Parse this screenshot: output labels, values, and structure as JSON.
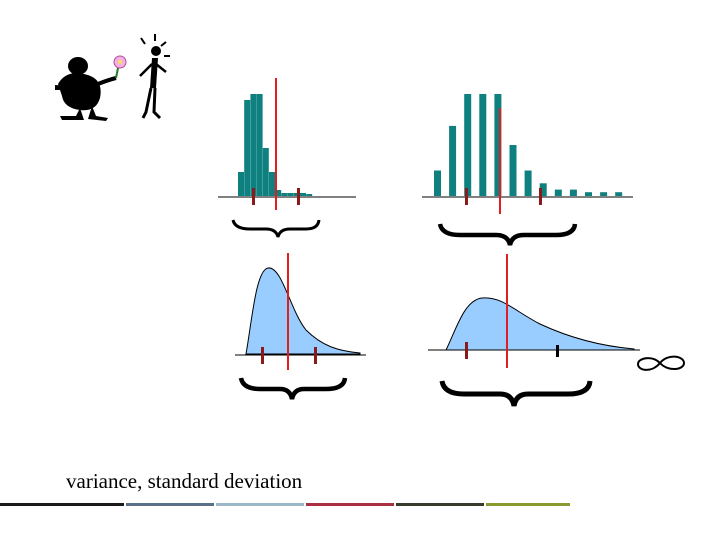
{
  "caption": "variance,  standard deviation",
  "colors": {
    "bar": "#0f8080",
    "mean_line": "#e02020",
    "sd_tick": "#8b1a1a",
    "curve_fill": "#99ccff",
    "ink": "#000000"
  },
  "icons": [
    "person-offering-flower-icon",
    "surprised-person-icon",
    "infinity-symbol-icon"
  ],
  "footer_colors": [
    "#1a1a1a",
    "#5a7088",
    "#9ab8c8",
    "#a83040",
    "#3a3a2a",
    "#8a9a30"
  ],
  "chart_data": [
    {
      "type": "bar",
      "description": "narrow discrete distribution",
      "values": [
        4,
        16,
        17,
        17,
        8,
        4,
        1,
        0.5,
        0.5,
        0.5,
        0.5,
        0.2
      ],
      "ylim": [
        0,
        17
      ]
    },
    {
      "type": "bar",
      "description": "wide discrete distribution",
      "values": [
        4,
        11,
        16,
        16,
        16,
        8,
        4,
        2,
        1,
        1,
        0.6,
        0.6,
        0.6
      ],
      "ylim": [
        0,
        16
      ]
    }
  ]
}
